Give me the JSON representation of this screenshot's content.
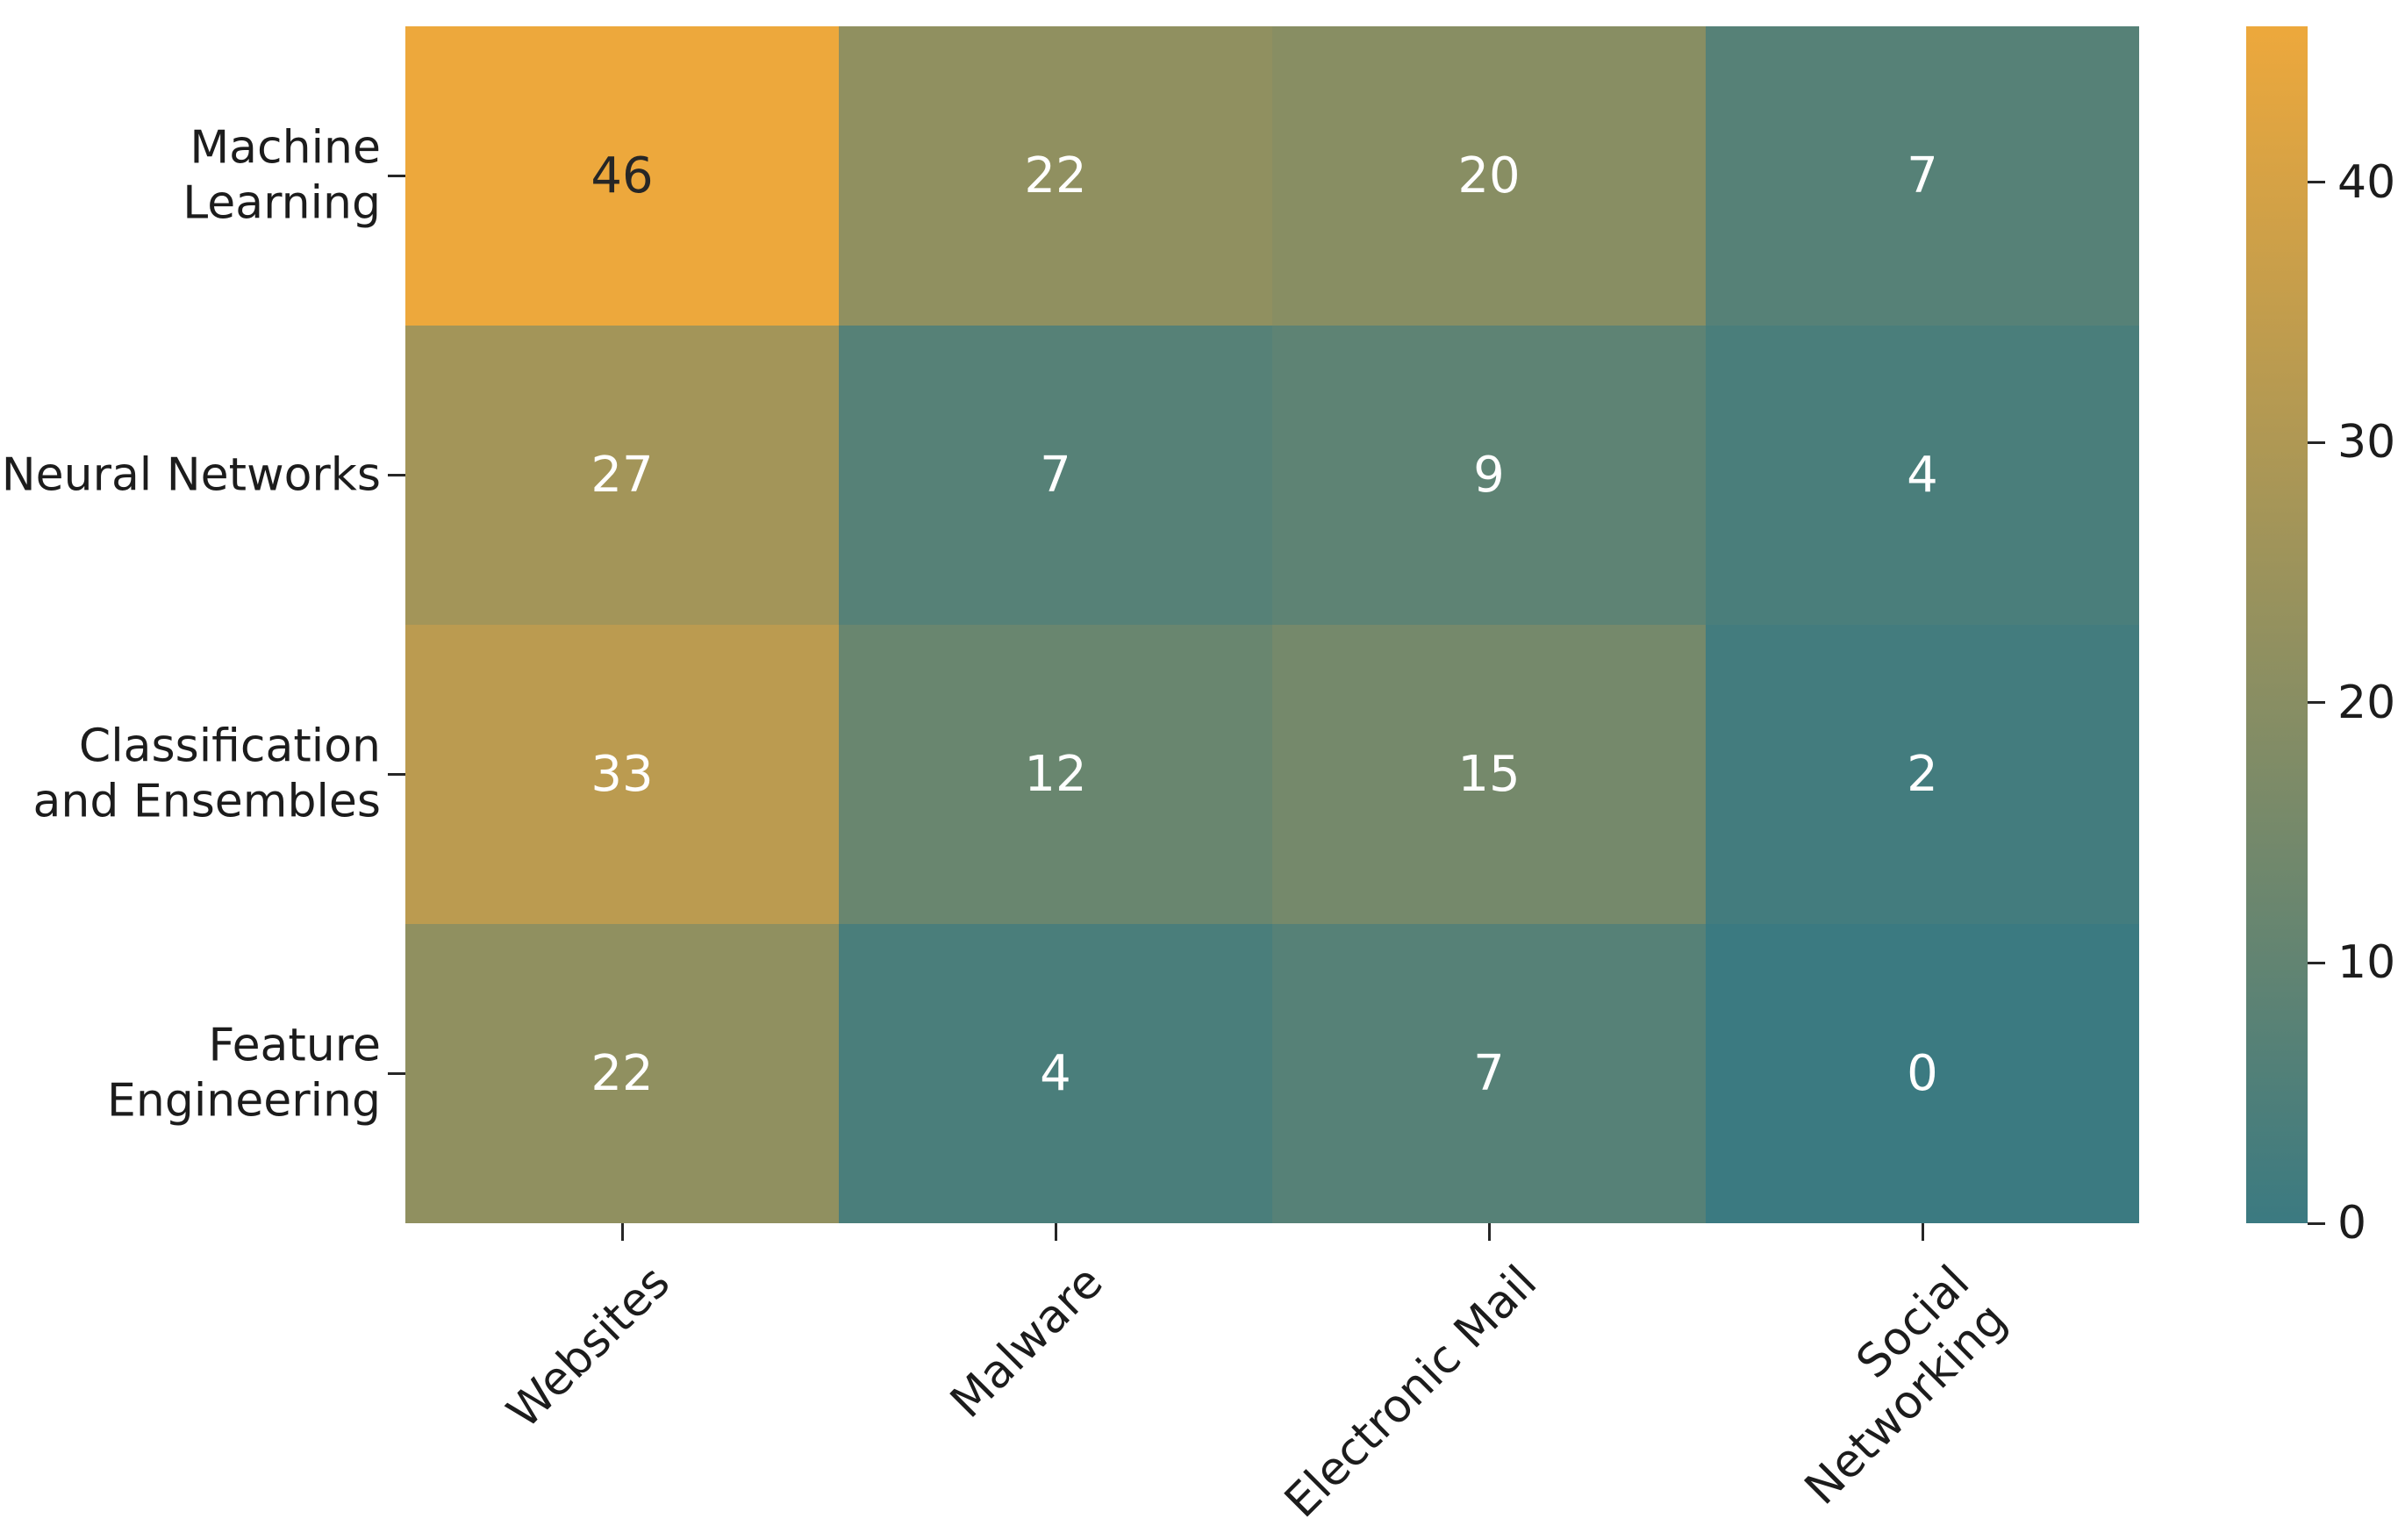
{
  "figure": {
    "background": "#ffffff",
    "text_color": "#1c1c1c",
    "tick_color": "#262626"
  },
  "chart_data": {
    "type": "heatmap",
    "title": "",
    "xlabel": "",
    "ylabel": "",
    "row_labels": [
      "Machine\nLearning",
      "Neural Networks",
      "Classification\nand Ensembles",
      "Feature\nEngineering"
    ],
    "col_labels": [
      "Websites",
      "Malware",
      "Electronic Mail",
      "Social\nNetworking"
    ],
    "values": [
      [
        46,
        22,
        20,
        7
      ],
      [
        27,
        7,
        9,
        4
      ],
      [
        33,
        12,
        15,
        2
      ],
      [
        22,
        4,
        7,
        0
      ]
    ],
    "vmin": 0,
    "vmax": 46,
    "grid": false,
    "annotations": true,
    "annotation_colors": {
      "dark_text": "#262626",
      "light_text": "#ffffff"
    },
    "colormap": {
      "low": "#3b7a81",
      "high": "#eda83c"
    },
    "colorbar": {
      "position": "right",
      "ticks": [
        0,
        10,
        20,
        30,
        40
      ]
    },
    "x_tick_rotation_deg": 45
  }
}
